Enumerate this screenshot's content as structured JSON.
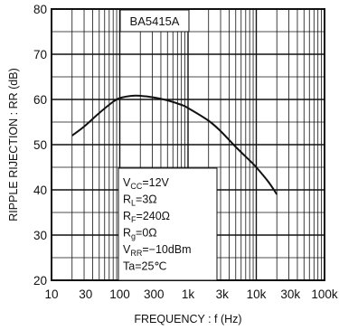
{
  "chart_data": {
    "type": "line",
    "title": "BA5415A",
    "xlabel": "FREQUENCY : f (Hz)",
    "ylabel": "RIPPLE RIJECTION : RR (dB)",
    "xscale": "log",
    "xlim": [
      10,
      100000
    ],
    "ylim": [
      20,
      80
    ],
    "grid": true,
    "x_tick_labels": [
      "10",
      "30",
      "100",
      "300",
      "1k",
      "3k",
      "10k",
      "30k",
      "100k"
    ],
    "y_tick_labels": [
      "20",
      "30",
      "40",
      "50",
      "60",
      "70",
      "80"
    ],
    "series": [
      {
        "x": [
          20,
          30,
          50,
          80,
          100,
          150,
          200,
          300,
          500,
          800,
          1000,
          2000,
          3000,
          5000,
          8000,
          10000,
          15000,
          20000
        ],
        "y": [
          52.0,
          54.0,
          57.0,
          59.5,
          60.3,
          60.8,
          60.8,
          60.5,
          59.8,
          58.8,
          58.1,
          55.3,
          53.0,
          49.5,
          46.5,
          45.0,
          41.8,
          39.0
        ]
      }
    ],
    "conditions": [
      {
        "main": "V",
        "sub": "CC",
        "rest": "=12V"
      },
      {
        "main": "R",
        "sub": "L",
        "rest": "=3Ω"
      },
      {
        "main": "R",
        "sub": "F",
        "rest": "=240Ω"
      },
      {
        "main": "R",
        "sub": "g",
        "rest": "=0Ω"
      },
      {
        "main": "V",
        "sub": "RR",
        "rest": "=−10dBm"
      },
      {
        "main": "Ta",
        "sub": "",
        "rest": "=25℃"
      }
    ],
    "colors": {
      "line": "#111111",
      "grid": "#111111",
      "background": "#ffffff"
    }
  }
}
